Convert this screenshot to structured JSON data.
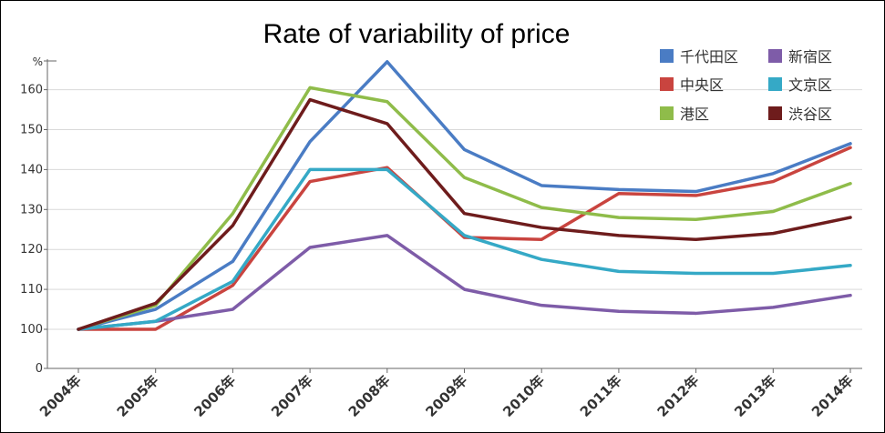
{
  "chart_data": {
    "type": "line",
    "title": "Rate of variability of price",
    "ylabel": "%",
    "xlabel": "",
    "ylim": [
      0,
      170
    ],
    "yticks": [
      0,
      100,
      110,
      120,
      130,
      140,
      150,
      160
    ],
    "categories": [
      "2004年",
      "2005年",
      "2006年",
      "2007年",
      "2008年",
      "2009年",
      "2010年",
      "2011年",
      "2012年",
      "2013年",
      "2014年"
    ],
    "grid": true,
    "legend_position": "top-right",
    "series": [
      {
        "name": "千代田区",
        "color": "#4a7cc4",
        "values": [
          100,
          105,
          117,
          147,
          167,
          145,
          136,
          135,
          134.5,
          139,
          146.5
        ]
      },
      {
        "name": "中央区",
        "color": "#c9443f",
        "values": [
          100,
          100,
          111,
          137,
          140.5,
          123,
          122.5,
          134,
          133.5,
          137,
          145.5
        ]
      },
      {
        "name": "港区",
        "color": "#8fbc4a",
        "values": [
          100,
          106,
          129,
          160.5,
          157,
          138,
          130.5,
          128,
          127.5,
          129.5,
          136.5
        ]
      },
      {
        "name": "新宿区",
        "color": "#7e5ca8",
        "values": [
          100,
          102,
          105,
          120.5,
          123.5,
          110,
          106,
          104.5,
          104,
          105.5,
          108.5
        ]
      },
      {
        "name": "文京区",
        "color": "#35a9c6",
        "values": [
          100,
          102,
          112,
          140,
          140,
          123.5,
          117.5,
          114.5,
          114,
          114,
          116
        ]
      },
      {
        "name": "渋谷区",
        "color": "#6e1c1c",
        "values": [
          100,
          106.5,
          126,
          157.5,
          151.5,
          129,
          125.5,
          123.5,
          122.5,
          124,
          128
        ]
      }
    ]
  }
}
